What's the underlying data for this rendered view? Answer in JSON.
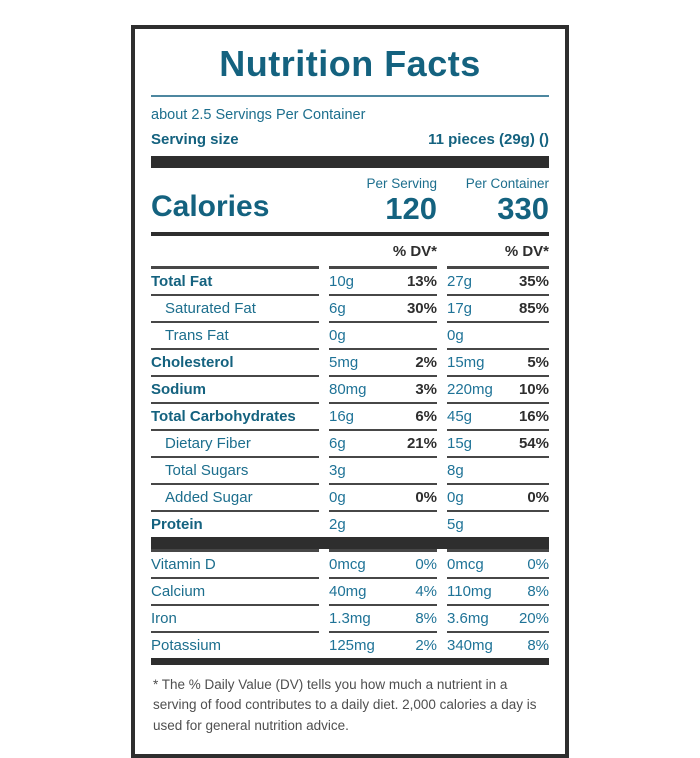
{
  "label": {
    "title": "Nutrition Facts",
    "servings_per_container": "about 2.5 Servings Per Container",
    "serving_size_label": "Serving size",
    "serving_size_value": "11 pieces (29g) ()",
    "calories": {
      "label": "Calories",
      "per_serving_header": "Per Serving",
      "per_container_header": "Per Container",
      "per_serving_value": "120",
      "per_container_value": "330"
    },
    "dv_header_per_serving": "% DV*",
    "dv_header_per_container": "% DV*",
    "nutrients": [
      {
        "name": "Total Fat",
        "bold": true,
        "indent": false,
        "ps_amt": "10g",
        "ps_dv": "13%",
        "pc_amt": "27g",
        "pc_dv": "35%"
      },
      {
        "name": "Saturated Fat",
        "bold": false,
        "indent": true,
        "ps_amt": "6g",
        "ps_dv": "30%",
        "pc_amt": "17g",
        "pc_dv": "85%"
      },
      {
        "name": "Trans Fat",
        "bold": false,
        "indent": true,
        "ps_amt": "0g",
        "ps_dv": "",
        "pc_amt": "0g",
        "pc_dv": ""
      },
      {
        "name": "Cholesterol",
        "bold": true,
        "indent": false,
        "ps_amt": "5mg",
        "ps_dv": "2%",
        "pc_amt": "15mg",
        "pc_dv": "5%"
      },
      {
        "name": "Sodium",
        "bold": true,
        "indent": false,
        "ps_amt": "80mg",
        "ps_dv": "3%",
        "pc_amt": "220mg",
        "pc_dv": "10%"
      },
      {
        "name": "Total Carbohydrates",
        "bold": true,
        "indent": false,
        "ps_amt": "16g",
        "ps_dv": "6%",
        "pc_amt": "45g",
        "pc_dv": "16%"
      },
      {
        "name": "Dietary Fiber",
        "bold": false,
        "indent": true,
        "ps_amt": "6g",
        "ps_dv": "21%",
        "pc_amt": "15g",
        "pc_dv": "54%"
      },
      {
        "name": "Total Sugars",
        "bold": false,
        "indent": true,
        "ps_amt": "3g",
        "ps_dv": "",
        "pc_amt": "8g",
        "pc_dv": ""
      },
      {
        "name": "Added Sugar",
        "bold": false,
        "indent": true,
        "ps_amt": "0g",
        "ps_dv": "0%",
        "pc_amt": "0g",
        "pc_dv": "0%"
      },
      {
        "name": "Protein",
        "bold": true,
        "indent": false,
        "ps_amt": "2g",
        "ps_dv": "",
        "pc_amt": "5g",
        "pc_dv": ""
      }
    ],
    "micronutrients": [
      {
        "name": "Vitamin D",
        "bold": false,
        "indent": false,
        "ps_amt": "0mcg",
        "ps_dv": "0%",
        "pc_amt": "0mcg",
        "pc_dv": "0%"
      },
      {
        "name": "Calcium",
        "bold": false,
        "indent": false,
        "ps_amt": "40mg",
        "ps_dv": "4%",
        "pc_amt": "110mg",
        "pc_dv": "8%"
      },
      {
        "name": "Iron",
        "bold": false,
        "indent": false,
        "ps_amt": "1.3mg",
        "ps_dv": "8%",
        "pc_amt": "3.6mg",
        "pc_dv": "20%"
      },
      {
        "name": "Potassium",
        "bold": false,
        "indent": false,
        "ps_amt": "125mg",
        "ps_dv": "2%",
        "pc_amt": "340mg",
        "pc_dv": "8%"
      }
    ],
    "footnote": "* The % Daily Value (DV) tells you how much a nutrient in a serving of food contributes to a daily diet. 2,000 calories a day is used for general nutrition advice.",
    "colors": {
      "teal": "#14627f",
      "teal_light": "#1f7397",
      "dark": "#2e2e2e"
    }
  }
}
